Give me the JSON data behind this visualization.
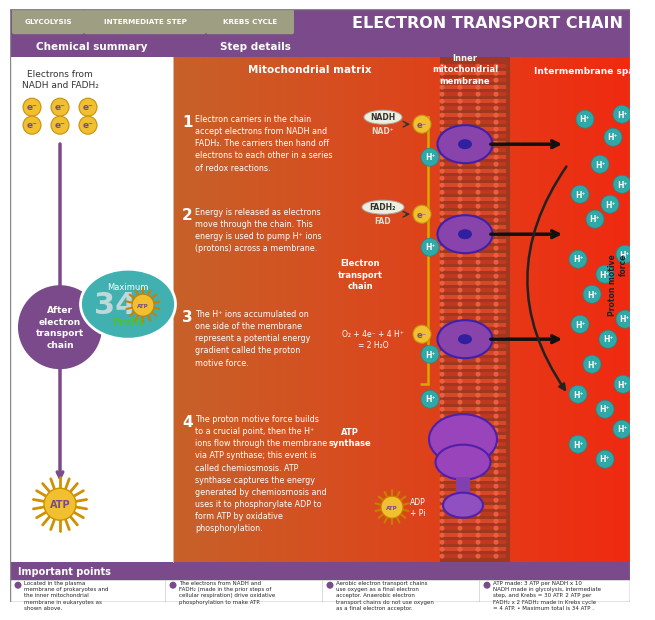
{
  "title": "ELECTRON TRANSPORT CHAIN",
  "nav_tabs": [
    "GLYCOLYSIS",
    "INTERMEDIATE STEP",
    "KREBS CYCLE"
  ],
  "nav_tab_color": "#9e9e82",
  "title_bg_color": "#7a4a8a",
  "left_bg": "#ffffff",
  "right_bg_gradient_left": "#c8602a",
  "right_bg_gradient_right": "#8b2500",
  "section_header_bg": "#7a4a8a",
  "chemical_summary_title": "Chemical summary",
  "step_details_title": "Step details",
  "electron_fill": "#f0c030",
  "electron_edge": "#c89010",
  "electron_text_color": "#7a4a8a",
  "arrow_purple": "#7a4a8a",
  "after_circle_fill": "#7a4a8a",
  "profit_bubble_fill": "#40b0b0",
  "profit_bubble_edge": "#ffffff",
  "atp_sunburst_fill": "#f0c030",
  "atp_sunburst_edge": "#c88000",
  "profit_text_color": "#50c030",
  "h_plus_fill": "#30a8a8",
  "h_plus_edge": "#208888",
  "nadh_bubble_fill": "#e8e8d8",
  "fadh2_bubble_fill": "#e8e8d8",
  "membrane_red": "#c84020",
  "membrane_strip_fill": "#e85030",
  "protein_purple": "#8844aa",
  "protein_purple_dark": "#6030aa",
  "atp_synthase_purple": "#9944bb",
  "teal_arrow_color": "#30b8b0",
  "black_arrow_color": "#202020",
  "yellow_arrow_color": "#d0a000",
  "step_num_color": "#ffffff",
  "step_text_color": "#ffffff",
  "mitochondrial_matrix_label": "Mitochondrial matrix",
  "inner_membrane_label": "Inner\nmitochondrial\nmembrane",
  "intermembrane_label": "Intermembrane space",
  "proton_motive_label": "Proton motive\nforce",
  "electron_transport_label": "Electron\ntransport\nchain",
  "important_points_bg": "#7a4a8a",
  "important_points_label": "Important points",
  "bullet_color": "#7a4a8a",
  "step1_text": "Electron carriers in the chain\naccept electrons from NADH and\nFADH₂. The carriers then hand off\nelectrons to each other in a series\nof redox reactions.",
  "step2_text": "Energy is released as electrons\nmove through the chain. This\nenergy is used to pump H⁺ ions\n(protons) across a membrane.",
  "step3_text": "The H⁺ ions accumulated on\none side of the membrane\nrepresent a potential energy\ngradient called the proton\nmotive force.",
  "step4_text": "The proton motive force builds\nto a crucial point, then the H⁺\nions flow through the membrane\nvia ATP synthase; this event is\ncalled chemiosmosis. ATP\nsynthase captures the energy\ngenerated by chemiosmosis and\nuses it to phosphorylate ADP to\nform ATP by oxidative\nphosphorylation.",
  "o2_label": "O₂ + 4e⁻ + 4 H⁺\n= 2 H₂O",
  "atp_synthase_label": "ATP\nsynthase",
  "adp_pi_label": "ADP\n+ Pi",
  "bullet_points": [
    "Located in the plasma\nmembrane of prokaryotes and\nthe inner mitochondrial\nmembrane in eukaryotes as\nshown above.",
    "The electrons from NADH and\nFADH₂ (made in the prior steps of\ncellular respiration) drive oxidative\nphosphorylation to make ATP.",
    "Aerobic electron transport chains\nuse oxygen as a final electron\nacceptor. Anaerobic electron\ntransport chains do not use oxygen\nas a final electron acceptor.",
    "ATP made: 3 ATP per NADH x 10\nNADH made in glycolysis, intermediate\nstep, and Krebs = 30 ATP. 2 ATP per\nFADH₂ x 2 FADH₂ made in Krebs cycle\n= 4 ATP. • Maximum total is 34 ATP ."
  ]
}
